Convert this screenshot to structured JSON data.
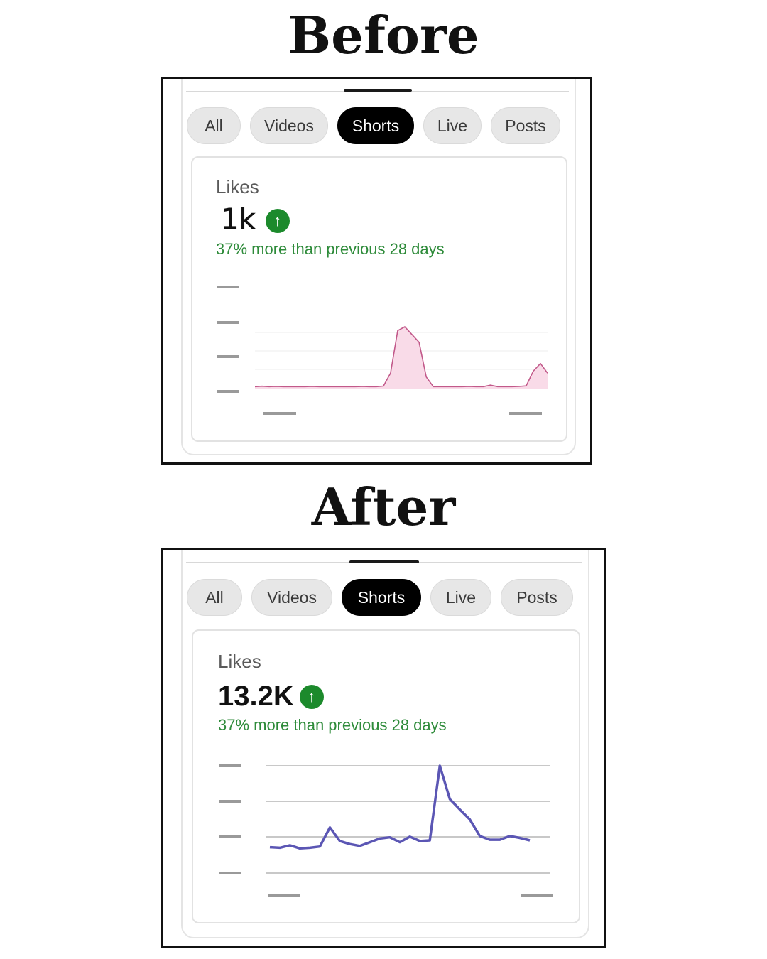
{
  "before": {
    "heading": "Before",
    "tabs": [
      {
        "label": "All",
        "active": false
      },
      {
        "label": "Videos",
        "active": false
      },
      {
        "label": "Shorts",
        "active": true
      },
      {
        "label": "Live",
        "active": false
      },
      {
        "label": "Posts",
        "active": false
      }
    ],
    "metric": {
      "label": "Likes",
      "value": "1k",
      "trend_icon": "arrow-up-circle-icon",
      "change_text": "37% more than previous 28 days"
    },
    "chart_data": {
      "type": "area",
      "series": [
        {
          "values": [
            1,
            1.2,
            1,
            1.1,
            1,
            1,
            1,
            1,
            1.1,
            1,
            1,
            1,
            1,
            1,
            1,
            1.1,
            1,
            1,
            1.3,
            8,
            30,
            32,
            28,
            24,
            6,
            1,
            1,
            1,
            1,
            1,
            1.1,
            1,
            1,
            1.8,
            1,
            1,
            1,
            1.1,
            1.4,
            9,
            13,
            8
          ]
        }
      ],
      "color": "#c2598a",
      "fill": "#f9dbe8",
      "grid": true
    },
    "colors": {
      "accent": "#1c8a2c"
    }
  },
  "after": {
    "heading": "After",
    "tabs": [
      {
        "label": "All",
        "active": false
      },
      {
        "label": "Videos",
        "active": false
      },
      {
        "label": "Shorts",
        "active": true
      },
      {
        "label": "Live",
        "active": false
      },
      {
        "label": "Posts",
        "active": false
      }
    ],
    "metric": {
      "label": "Likes",
      "value": "13.2K",
      "trend_icon": "arrow-up-circle-icon",
      "change_text": "37% more than previous 28 days"
    },
    "chart_data": {
      "type": "line",
      "series": [
        {
          "values": [
            4.2,
            4.1,
            4.5,
            4,
            4.1,
            4.3,
            7.4,
            5.2,
            4.7,
            4.4,
            5,
            5.6,
            5.8,
            5,
            5.9,
            5.2,
            5.3,
            17.4,
            12,
            10.3,
            8.7,
            6,
            5.4,
            5.4,
            6,
            5.7,
            5.3
          ]
        }
      ],
      "color": "#5b56b4",
      "grid": true
    },
    "colors": {
      "accent": "#1c8a2c"
    }
  }
}
